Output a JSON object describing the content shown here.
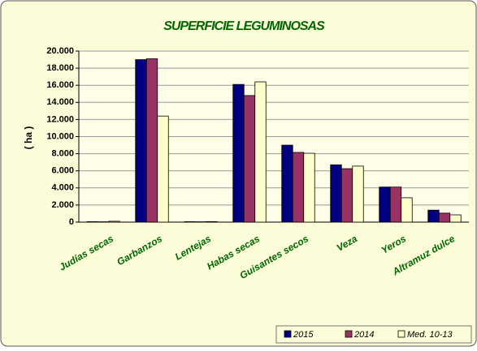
{
  "chart_data": {
    "type": "bar",
    "title": "SUPERFICIE LEGUMINOSAS",
    "y_label": "( ha )",
    "categories": [
      "Judías secas",
      "Garbanzos",
      "Lentejas",
      "Habas secas",
      "Guisantes secos",
      "Veza",
      "Yeros",
      "Altramuz dulce"
    ],
    "series": [
      {
        "name": "2015",
        "color": "#000080",
        "values": [
          50,
          19000,
          50,
          16100,
          9000,
          6700,
          4100,
          1400
        ]
      },
      {
        "name": "2014",
        "color": "#993366",
        "values": [
          40,
          19100,
          40,
          14800,
          8150,
          6250,
          4100,
          1050
        ]
      },
      {
        "name": "Med. 10-13",
        "color": "#ffffcc",
        "values": [
          100,
          12400,
          60,
          16400,
          8050,
          6550,
          2850,
          850
        ]
      }
    ],
    "ylim": [
      0,
      20000
    ],
    "yticks": [
      0,
      {
        "value": 2000,
        "label": "2.000"
      },
      {
        "value": 4000,
        "label": "4.000"
      },
      {
        "value": 6000,
        "label": "6.000"
      },
      {
        "value": 8000,
        "label": "8.000"
      },
      {
        "value": 10000,
        "label": "10.000"
      },
      {
        "value": 12000,
        "label": "12.000"
      },
      {
        "value": 14000,
        "label": "14.000"
      },
      {
        "value": 16000,
        "label": "16.000"
      },
      {
        "value": 18000,
        "label": "18.000"
      },
      {
        "value": 20000,
        "label": "20.000"
      }
    ],
    "grid": true,
    "legend": "bottom-right"
  }
}
